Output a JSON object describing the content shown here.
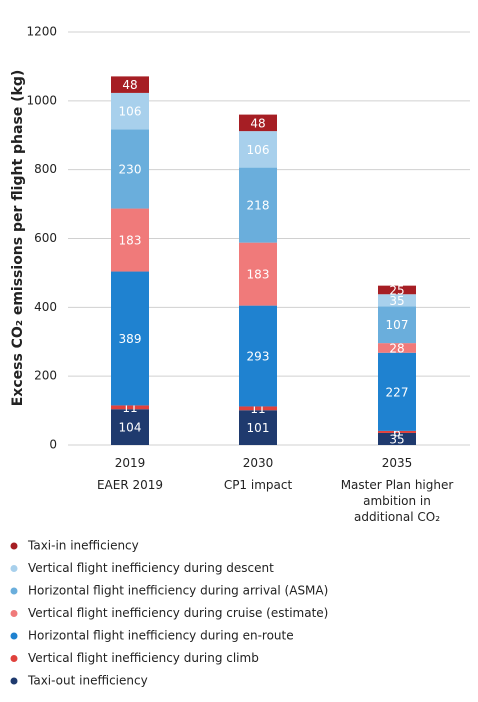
{
  "chart_data": {
    "type": "stacked_bar",
    "y_label": "Excess CO₂ emissions per flight phase (kg)",
    "categories": [
      "2019",
      "2030",
      "2035"
    ],
    "category_subtitles": [
      "EAER 2019",
      "CP1 impact",
      "Master Plan higher ambition in additional CO₂"
    ],
    "series": [
      {
        "name": "Taxi-out inefficiency",
        "color": "#1f3a6e",
        "values": [
          104,
          101,
          35
        ]
      },
      {
        "name": "Vertical flight inefficiency during climb",
        "color": "#e0413c",
        "values": [
          11,
          11,
          6
        ]
      },
      {
        "name": "Horizontal flight inefficiency during en-route",
        "color": "#1f82d0",
        "values": [
          389,
          293,
          227
        ]
      },
      {
        "name": "Vertical flight inefficiency during cruise (estimate)",
        "color": "#f07a7a",
        "values": [
          183,
          183,
          28
        ]
      },
      {
        "name": "Horizontal flight inefficiency during arrival (ASMA)",
        "color": "#6aaedc",
        "values": [
          230,
          218,
          107
        ]
      },
      {
        "name": "Vertical flight inefficiency during descent",
        "color": "#a8d0ec",
        "values": [
          106,
          106,
          35
        ]
      },
      {
        "name": "Taxi-in inefficiency",
        "color": "#a61e24",
        "values": [
          48,
          48,
          25
        ]
      }
    ],
    "ylim": [
      0,
      1200
    ],
    "yticks": [
      0,
      200,
      400,
      600,
      800,
      1000,
      1200
    ],
    "grid": true
  }
}
